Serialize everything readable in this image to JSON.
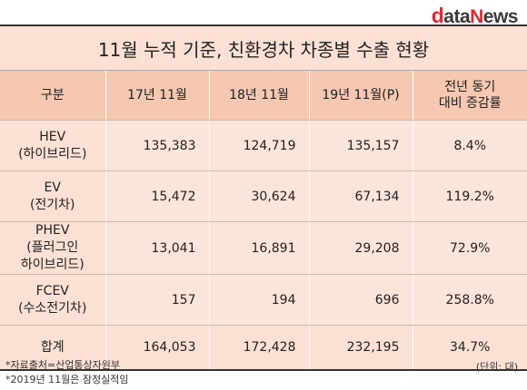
{
  "logo": {
    "d": "d",
    "rest": "ata",
    "n": "N",
    "ews": "ews"
  },
  "title": "11월 누적 기준, 친환경차 차종별 수출 현황",
  "headers": [
    {
      "line1": "구분",
      "line2": ""
    },
    {
      "line1": "17년 11월",
      "line2": ""
    },
    {
      "line1": "18년 11월",
      "line2": ""
    },
    {
      "line1": "19년 11월(P)",
      "line2": ""
    },
    {
      "line1": "전년 동기",
      "line2": "대비 증감률"
    }
  ],
  "rows": [
    {
      "label": [
        "HEV",
        "(하이브리드)"
      ],
      "y17": "135,383",
      "y18": "124,719",
      "y19": "135,157",
      "change": "8.4%"
    },
    {
      "label": [
        "EV",
        "(전기차)"
      ],
      "y17": "15,472",
      "y18": "30,624",
      "y19": "67,134",
      "change": "119.2%"
    },
    {
      "label": [
        "PHEV",
        "(플러그인",
        "하이브리드)"
      ],
      "y17": "13,041",
      "y18": "16,891",
      "y19": "29,208",
      "change": "72.9%"
    },
    {
      "label": [
        "FCEV",
        "(수소전기차)"
      ],
      "y17": "157",
      "y18": "194",
      "y19": "696",
      "change": "258.8%"
    }
  ],
  "total": {
    "label": "합계",
    "y17": "164,053",
    "y18": "172,428",
    "y19": "232,195",
    "change": "34.7%"
  },
  "notes": [
    "*자료출처=산업통상자원부",
    "*2019년 11월은 잠정실적임"
  ],
  "unit": "(단위: 대)"
}
